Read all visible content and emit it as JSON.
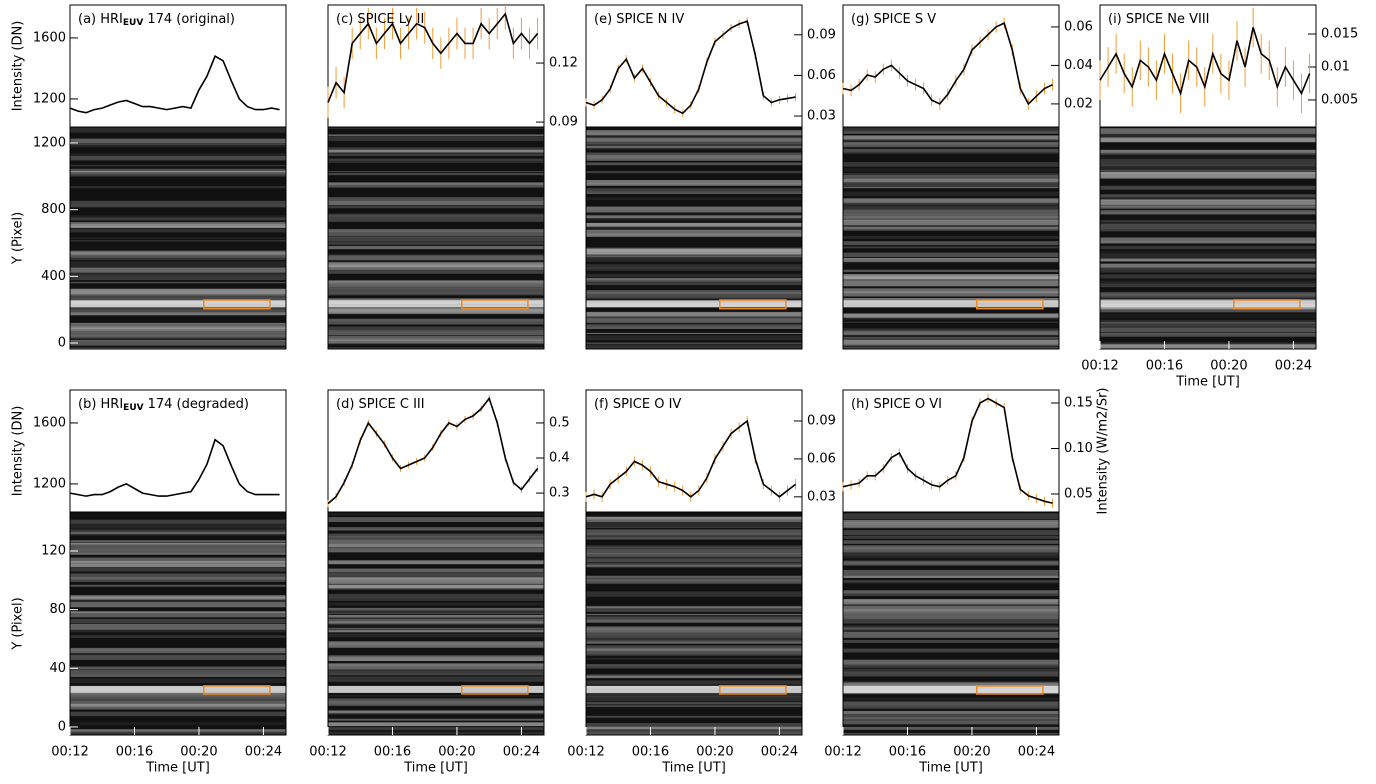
{
  "chart_data": [
    {
      "type": "line",
      "title": "(a) HRI",
      "title_sub": "EUV",
      "title_rest": "174 (original)",
      "ylabel": "Intensity (DN)",
      "x": [
        12,
        12.5,
        13,
        13.5,
        14,
        14.5,
        15,
        15.5,
        16,
        16.5,
        17,
        17.5,
        18,
        18.5,
        19,
        19.5,
        20,
        20.5,
        21,
        21.5,
        22,
        22.5,
        23,
        23.5,
        24,
        24.5,
        25
      ],
      "xlim": [
        12,
        25.4
      ],
      "ylim": [
        1016,
        1816
      ],
      "yticks": [
        1200,
        1600
      ],
      "series": [
        {
          "color": "#000000",
          "values": [
            1140,
            1120,
            1110,
            1130,
            1140,
            1160,
            1180,
            1190,
            1170,
            1150,
            1150,
            1140,
            1130,
            1140,
            1150,
            1140,
            1260,
            1350,
            1480,
            1450,
            1320,
            1200,
            1150,
            1130,
            1130,
            1140,
            1130
          ]
        }
      ]
    },
    {
      "type": "image",
      "ylabel": "Y (Pixel)",
      "xlim": [
        12,
        25.4
      ],
      "ylim": [
        -36,
        1296
      ],
      "yticks": [
        0,
        400,
        800,
        1200
      ],
      "box_x": [
        20.3,
        24.4
      ],
      "box_y": [
        206,
        258
      ],
      "box_color": "#f08a24"
    },
    {
      "type": "line",
      "title": "(c) SPICE Ly II",
      "x": [
        12,
        12.5,
        13,
        13.5,
        14,
        14.5,
        15,
        15.5,
        16,
        16.5,
        17,
        17.5,
        18,
        18.5,
        19,
        19.5,
        20,
        20.5,
        21,
        21.5,
        22,
        22.5,
        23,
        23.5,
        24,
        24.5,
        25
      ],
      "xlim": [
        12,
        25.4
      ],
      "ylim": [
        0.0875,
        0.1495
      ],
      "yticks": [
        0.09,
        0.12
      ],
      "series": [
        {
          "color": "#000000",
          "error_color": "#f39c35",
          "values": [
            0.1,
            0.11,
            0.105,
            0.13,
            0.135,
            0.14,
            0.13,
            0.135,
            0.14,
            0.13,
            0.135,
            0.14,
            0.138,
            0.13,
            0.125,
            0.13,
            0.135,
            0.13,
            0.13,
            0.14,
            0.135,
            0.14,
            0.145,
            0.13,
            0.135,
            0.13,
            0.135
          ],
          "errors": [
            0.008,
            0.008,
            0.008,
            0.008,
            0.008,
            0.008,
            0.008,
            0.008,
            0.008,
            0.008,
            0.008,
            0.008,
            0.008,
            0.008,
            0.008,
            0.008,
            0.008,
            0.008,
            0.008,
            0.008,
            0.008,
            0.008,
            0.008,
            0.008,
            0.008,
            0.008,
            0.008
          ]
        }
      ]
    },
    {
      "type": "image",
      "xlim": [
        12,
        25.4
      ],
      "ylim": [
        -36,
        1296
      ],
      "box_x": [
        20.3,
        24.4
      ],
      "box_y": [
        206,
        258
      ],
      "box_color": "#f08a24"
    },
    {
      "type": "line",
      "title": "(e) SPICE N IV",
      "x": [
        12,
        12.5,
        13,
        13.5,
        14,
        14.5,
        15,
        15.5,
        16,
        16.5,
        17,
        17.5,
        18,
        18.5,
        19,
        19.5,
        20,
        20.5,
        21,
        21.5,
        22,
        22.5,
        23,
        23.5,
        24,
        24.5,
        25
      ],
      "xlim": [
        12,
        25.4
      ],
      "ylim": [
        0.0219,
        0.112
      ],
      "yticks": [
        0.03,
        0.06,
        0.09
      ],
      "series": [
        {
          "color": "#000000",
          "error_color": "#f39c35",
          "values": [
            0.04,
            0.038,
            0.042,
            0.05,
            0.065,
            0.072,
            0.058,
            0.065,
            0.055,
            0.045,
            0.04,
            0.035,
            0.032,
            0.038,
            0.05,
            0.07,
            0.085,
            0.09,
            0.095,
            0.098,
            0.1,
            0.075,
            0.045,
            0.04,
            0.042,
            0.043,
            0.044
          ],
          "errors": [
            0.003,
            0.003,
            0.003,
            0.003,
            0.003,
            0.003,
            0.003,
            0.003,
            0.003,
            0.003,
            0.003,
            0.003,
            0.003,
            0.003,
            0.003,
            0.003,
            0.003,
            0.003,
            0.003,
            0.003,
            0.003,
            0.003,
            0.003,
            0.003,
            0.003,
            0.003,
            0.003
          ]
        }
      ]
    },
    {
      "type": "image",
      "xlim": [
        12,
        25.4
      ],
      "ylim": [
        -36,
        1296
      ],
      "box_x": [
        20.3,
        24.4
      ],
      "box_y": [
        206,
        258
      ],
      "box_color": "#f08a24"
    },
    {
      "type": "line",
      "title": "(g) SPICE S V",
      "x": [
        12,
        12.5,
        13,
        13.5,
        14,
        14.5,
        15,
        15.5,
        16,
        16.5,
        17,
        17.5,
        18,
        18.5,
        19,
        19.5,
        20,
        20.5,
        21,
        21.5,
        22,
        22.5,
        23,
        23.5,
        24,
        24.5,
        25
      ],
      "xlim": [
        12,
        25.4
      ],
      "ylim": [
        0.008,
        0.0714
      ],
      "yticks": [
        0.02,
        0.04,
        0.06
      ],
      "series": [
        {
          "color": "#000000",
          "error_color": "#f39c35",
          "values": [
            0.028,
            0.027,
            0.03,
            0.035,
            0.034,
            0.038,
            0.04,
            0.036,
            0.032,
            0.03,
            0.028,
            0.022,
            0.02,
            0.025,
            0.032,
            0.038,
            0.048,
            0.052,
            0.056,
            0.06,
            0.062,
            0.048,
            0.028,
            0.02,
            0.024,
            0.028,
            0.03
          ],
          "errors": [
            0.003,
            0.003,
            0.003,
            0.003,
            0.003,
            0.003,
            0.003,
            0.003,
            0.003,
            0.003,
            0.003,
            0.003,
            0.003,
            0.003,
            0.003,
            0.003,
            0.003,
            0.003,
            0.003,
            0.003,
            0.003,
            0.003,
            0.003,
            0.003,
            0.003,
            0.003,
            0.003
          ]
        }
      ]
    },
    {
      "type": "image",
      "xlim": [
        12,
        25.4
      ],
      "ylim": [
        -36,
        1296
      ],
      "box_x": [
        20.3,
        24.4
      ],
      "box_y": [
        206,
        258
      ],
      "box_color": "#f08a24"
    },
    {
      "type": "line",
      "title": "(i) SPICE Ne VIII",
      "x": [
        12,
        12.5,
        13,
        13.5,
        14,
        14.5,
        15,
        15.5,
        16,
        16.5,
        17,
        17.5,
        18,
        18.5,
        19,
        19.5,
        20,
        20.5,
        21,
        21.5,
        22,
        22.5,
        23,
        23.5,
        24,
        24.5,
        25
      ],
      "xlim": [
        12,
        25.4
      ],
      "ylim": [
        0.0009,
        0.0194
      ],
      "yticks": [
        0.005,
        0.01,
        0.015
      ],
      "series": [
        {
          "color": "#000000",
          "error_color": "#f39c35",
          "values": [
            0.008,
            0.01,
            0.012,
            0.009,
            0.007,
            0.011,
            0.01,
            0.008,
            0.012,
            0.009,
            0.006,
            0.011,
            0.01,
            0.007,
            0.012,
            0.009,
            0.008,
            0.014,
            0.01,
            0.016,
            0.012,
            0.011,
            0.007,
            0.01,
            0.008,
            0.006,
            0.009
          ],
          "errors": [
            0.003,
            0.003,
            0.003,
            0.003,
            0.003,
            0.003,
            0.003,
            0.003,
            0.003,
            0.003,
            0.003,
            0.003,
            0.003,
            0.003,
            0.003,
            0.003,
            0.003,
            0.003,
            0.003,
            0.003,
            0.003,
            0.003,
            0.003,
            0.003,
            0.003,
            0.003,
            0.003
          ]
        }
      ]
    },
    {
      "type": "image",
      "xlim": [
        12,
        25.4
      ],
      "ylim": [
        -36,
        1296
      ],
      "xticks": [
        {
          "value": 12,
          "label": "00:12"
        },
        {
          "value": 16,
          "label": "00:16"
        },
        {
          "value": 20,
          "label": "00:20"
        },
        {
          "value": 24,
          "label": "00:24"
        }
      ],
      "xlabel": "Time [UT]",
      "box_x": [
        20.3,
        24.4
      ],
      "box_y": [
        206,
        258
      ],
      "box_color": "#f08a24"
    },
    {
      "type": "line",
      "title": "(b) HRI",
      "title_sub": "EUV",
      "title_rest": "174 (degraded)",
      "ylabel": "Intensity (DN)",
      "x": [
        12,
        12.5,
        13,
        13.5,
        14,
        14.5,
        15,
        15.5,
        16,
        16.5,
        17,
        17.5,
        18,
        18.5,
        19,
        19.5,
        20,
        20.5,
        21,
        21.5,
        22,
        22.5,
        23,
        23.5,
        24,
        24.5,
        25
      ],
      "xlim": [
        12,
        25.4
      ],
      "ylim": [
        1016,
        1816
      ],
      "yticks": [
        1200,
        1600
      ],
      "series": [
        {
          "color": "#000000",
          "values": [
            1140,
            1130,
            1120,
            1130,
            1130,
            1150,
            1180,
            1200,
            1170,
            1140,
            1130,
            1120,
            1120,
            1130,
            1140,
            1150,
            1230,
            1330,
            1490,
            1450,
            1320,
            1200,
            1150,
            1130,
            1130,
            1130,
            1130
          ]
        }
      ]
    },
    {
      "type": "image",
      "ylabel": "Y (Pixel)",
      "xlim": [
        12,
        25.4
      ],
      "ylim": [
        -5.5,
        146.6
      ],
      "yticks": [
        0,
        40,
        80,
        120
      ],
      "xticks": [
        {
          "value": 12,
          "label": "00:12"
        },
        {
          "value": 16,
          "label": "00:16"
        },
        {
          "value": 20,
          "label": "00:20"
        },
        {
          "value": 24,
          "label": "00:24"
        }
      ],
      "xlabel": "Time [UT]",
      "box_x": [
        20.3,
        24.4
      ],
      "box_y": [
        22.5,
        28
      ],
      "box_color": "#f08a24"
    },
    {
      "type": "line",
      "title": "(d) SPICE C III",
      "x": [
        12,
        12.5,
        13,
        13.5,
        14,
        14.5,
        15,
        15.5,
        16,
        16.5,
        17,
        17.5,
        18,
        18.5,
        19,
        19.5,
        20,
        20.5,
        21,
        21.5,
        22,
        22.5,
        23,
        23.5,
        24,
        24.5,
        25
      ],
      "xlim": [
        12,
        25.4
      ],
      "ylim": [
        0.246,
        0.594
      ],
      "yticks": [
        0.3,
        0.4,
        0.5
      ],
      "series": [
        {
          "color": "#000000",
          "error_color": "#f39c35",
          "values": [
            0.27,
            0.29,
            0.33,
            0.38,
            0.45,
            0.5,
            0.47,
            0.44,
            0.4,
            0.37,
            0.38,
            0.39,
            0.4,
            0.43,
            0.47,
            0.5,
            0.49,
            0.51,
            0.52,
            0.54,
            0.57,
            0.5,
            0.4,
            0.33,
            0.31,
            0.34,
            0.37
          ],
          "errors": [
            0.01,
            0.01,
            0.01,
            0.01,
            0.01,
            0.01,
            0.01,
            0.01,
            0.01,
            0.01,
            0.01,
            0.01,
            0.01,
            0.01,
            0.01,
            0.01,
            0.01,
            0.01,
            0.01,
            0.01,
            0.01,
            0.01,
            0.01,
            0.01,
            0.01,
            0.01,
            0.01
          ]
        }
      ]
    },
    {
      "type": "image",
      "xlim": [
        12,
        25.4
      ],
      "ylim": [
        -5.5,
        146.6
      ],
      "xticks": [
        {
          "value": 12,
          "label": "00:12"
        },
        {
          "value": 16,
          "label": "00:16"
        },
        {
          "value": 20,
          "label": "00:20"
        },
        {
          "value": 24,
          "label": "00:24"
        }
      ],
      "xlabel": "Time [UT]",
      "box_x": [
        20.3,
        24.4
      ],
      "box_y": [
        22.5,
        28
      ],
      "box_color": "#f08a24"
    },
    {
      "type": "line",
      "title": "(f) SPICE O IV",
      "x": [
        12,
        12.5,
        13,
        13.5,
        14,
        14.5,
        15,
        15.5,
        16,
        16.5,
        17,
        17.5,
        18,
        18.5,
        19,
        19.5,
        20,
        20.5,
        21,
        21.5,
        22,
        22.5,
        23,
        23.5,
        24,
        24.5,
        25
      ],
      "xlim": [
        12,
        25.4
      ],
      "ylim": [
        0.018,
        0.1145
      ],
      "yticks": [
        0.03,
        0.06,
        0.09
      ],
      "series": [
        {
          "color": "#000000",
          "error_color": "#f39c35",
          "values": [
            0.03,
            0.032,
            0.03,
            0.04,
            0.045,
            0.05,
            0.058,
            0.055,
            0.05,
            0.042,
            0.04,
            0.038,
            0.035,
            0.03,
            0.035,
            0.045,
            0.06,
            0.07,
            0.08,
            0.085,
            0.09,
            0.06,
            0.04,
            0.035,
            0.03,
            0.035,
            0.04
          ],
          "errors": [
            0.004,
            0.004,
            0.004,
            0.004,
            0.004,
            0.004,
            0.004,
            0.004,
            0.004,
            0.004,
            0.004,
            0.004,
            0.004,
            0.004,
            0.004,
            0.004,
            0.004,
            0.004,
            0.004,
            0.004,
            0.004,
            0.004,
            0.004,
            0.004,
            0.004,
            0.004,
            0.004
          ]
        }
      ]
    },
    {
      "type": "image",
      "xlim": [
        12,
        25.4
      ],
      "ylim": [
        -5.5,
        146.6
      ],
      "xticks": [
        {
          "value": 12,
          "label": "00:12"
        },
        {
          "value": 16,
          "label": "00:16"
        },
        {
          "value": 20,
          "label": "00:20"
        },
        {
          "value": 24,
          "label": "00:24"
        }
      ],
      "xlabel": "Time [UT]",
      "box_x": [
        20.3,
        24.4
      ],
      "box_y": [
        22.5,
        28
      ],
      "box_color": "#f08a24"
    },
    {
      "type": "line",
      "title": "(h) SPICE O VI",
      "ylabel": "Intensity (W/m2/Sr)",
      "x": [
        12,
        12.5,
        13,
        13.5,
        14,
        14.5,
        15,
        15.5,
        16,
        16.5,
        17,
        17.5,
        18,
        18.5,
        19,
        19.5,
        20,
        20.5,
        21,
        21.5,
        22,
        22.5,
        23,
        23.5,
        24,
        24.5,
        25
      ],
      "xlim": [
        12,
        25.4
      ],
      "ylim": [
        0.0302,
        0.1643
      ],
      "yticks": [
        0.05,
        {
          "value": 0.1,
          "label": "0.10"
        },
        0.15
      ],
      "series": [
        {
          "color": "#000000",
          "error_color": "#f39c35",
          "values": [
            0.058,
            0.06,
            0.062,
            0.07,
            0.07,
            0.078,
            0.09,
            0.095,
            0.078,
            0.07,
            0.065,
            0.06,
            0.058,
            0.065,
            0.07,
            0.09,
            0.13,
            0.15,
            0.155,
            0.15,
            0.145,
            0.09,
            0.055,
            0.048,
            0.045,
            0.042,
            0.04
          ],
          "errors": [
            0.005,
            0.005,
            0.005,
            0.005,
            0.005,
            0.005,
            0.005,
            0.005,
            0.005,
            0.005,
            0.005,
            0.005,
            0.005,
            0.005,
            0.005,
            0.005,
            0.005,
            0.005,
            0.005,
            0.005,
            0.005,
            0.005,
            0.005,
            0.005,
            0.005,
            0.005,
            0.005
          ]
        }
      ]
    },
    {
      "type": "image",
      "xlim": [
        12,
        25.4
      ],
      "ylim": [
        -5.5,
        146.6
      ],
      "xticks": [
        {
          "value": 12,
          "label": "00:12"
        },
        {
          "value": 16,
          "label": "00:16"
        },
        {
          "value": 20,
          "label": "00:20"
        },
        {
          "value": 24,
          "label": "00:24"
        }
      ],
      "xlabel": "Time [UT]",
      "box_x": [
        20.3,
        24.4
      ],
      "box_y": [
        22.5,
        28
      ],
      "box_color": "#f08a24"
    }
  ]
}
